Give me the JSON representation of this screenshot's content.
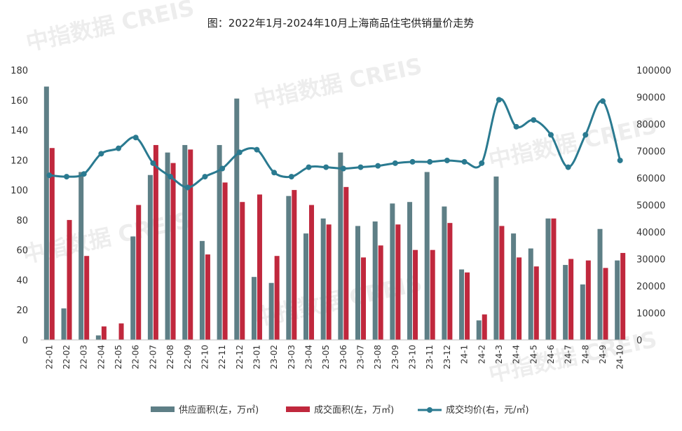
{
  "chart_data": {
    "type": "bar+line",
    "title": "图：2022年1月-2024年10月上海商品住宅供销量价走势",
    "watermark": "中指数据 CREIS",
    "categories": [
      "22-01",
      "22-02",
      "22-03",
      "22-04",
      "22-05",
      "22-06",
      "22-07",
      "22-08",
      "22-09",
      "22-10",
      "22-11",
      "22-12",
      "23-01",
      "23-02",
      "23-03",
      "23-04",
      "23-05",
      "23-06",
      "23-07",
      "23-08",
      "23-09",
      "23-10",
      "23-11",
      "23-12",
      "24-1",
      "24-2",
      "24-3",
      "24-4",
      "24-5",
      "24-6",
      "24-7",
      "24-8",
      "24-9",
      "24-10"
    ],
    "series": [
      {
        "name": "供应面积(左，万㎡)",
        "type": "bar",
        "axis": "left",
        "color": "#5e7f86",
        "values": [
          169,
          21,
          112,
          3,
          0,
          69,
          110,
          125,
          130,
          66,
          130,
          161,
          42,
          38,
          96,
          71,
          81,
          125,
          76,
          79,
          91,
          92,
          112,
          89,
          47,
          13,
          109,
          71,
          61,
          81,
          50,
          37,
          74,
          53
        ]
      },
      {
        "name": "成交面积(左，万㎡)",
        "type": "bar",
        "axis": "left",
        "color": "#c0283d",
        "values": [
          128,
          80,
          56,
          9,
          11,
          90,
          130,
          118,
          127,
          57,
          105,
          92,
          97,
          56,
          100,
          90,
          77,
          102,
          55,
          63,
          77,
          60,
          60,
          78,
          45,
          17,
          76,
          55,
          49,
          81,
          54,
          53,
          48,
          58
        ]
      },
      {
        "name": "成交均价(右，元/㎡)",
        "type": "line",
        "axis": "right",
        "color": "#2a7a90",
        "values": [
          61000,
          60500,
          61500,
          69000,
          71000,
          75000,
          65500,
          60500,
          56500,
          60500,
          63500,
          69500,
          70500,
          62000,
          60500,
          64000,
          64000,
          63500,
          64000,
          64500,
          65500,
          66000,
          66000,
          66500,
          66000,
          65500,
          89000,
          79000,
          81500,
          76000,
          64000,
          76000,
          88500,
          66500
        ]
      }
    ],
    "y_left": {
      "min": 0,
      "max": 180,
      "ticks": [
        "0",
        "20",
        "40",
        "60",
        "80",
        "100",
        "120",
        "140",
        "160",
        "180"
      ]
    },
    "y_right": {
      "min": 0,
      "max": 100000,
      "ticks": [
        "0",
        "10000",
        "20000",
        "30000",
        "40000",
        "50000",
        "60000",
        "70000",
        "80000",
        "90000",
        "100000"
      ]
    },
    "legend_position": "bottom",
    "grid": false
  }
}
